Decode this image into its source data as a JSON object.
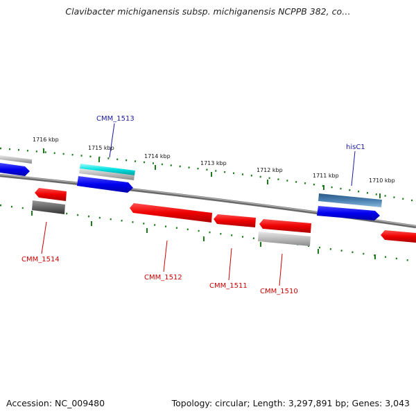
{
  "title": "Clavibacter michiganensis subsp. michiganensis NCPPB 382, co…",
  "footer": {
    "accession": "Accession: NC_009480",
    "summary": "Topology: circular; Length: 3,297,891 bp; Genes: 3,043"
  },
  "colors": {
    "ruler": "#1a7a1a",
    "axis": "#888888",
    "forward_gene": "#0000ee",
    "reverse_gene": "#ee0000",
    "forward_label": "#1a1aa0",
    "reverse_label": "#cc0000",
    "highlight": "#00e0e0",
    "gray_feature": "#bbbbbb",
    "dark_feature": "#666666",
    "steel_feature": "#4a80b0"
  },
  "kbp_ticks": [
    "1716 kbp",
    "1715 kbp",
    "1714 kbp",
    "1713 kbp",
    "1712 kbp",
    "1711 kbp",
    "1710 kbp"
  ],
  "gene_labels": {
    "CMM_1513": "CMM_1513",
    "hisC1": "hisC1",
    "CMM_1514": "CMM_1514",
    "CMM_1512": "CMM_1512",
    "CMM_1511": "CMM_1511",
    "CMM_1510": "CMM_1510"
  }
}
